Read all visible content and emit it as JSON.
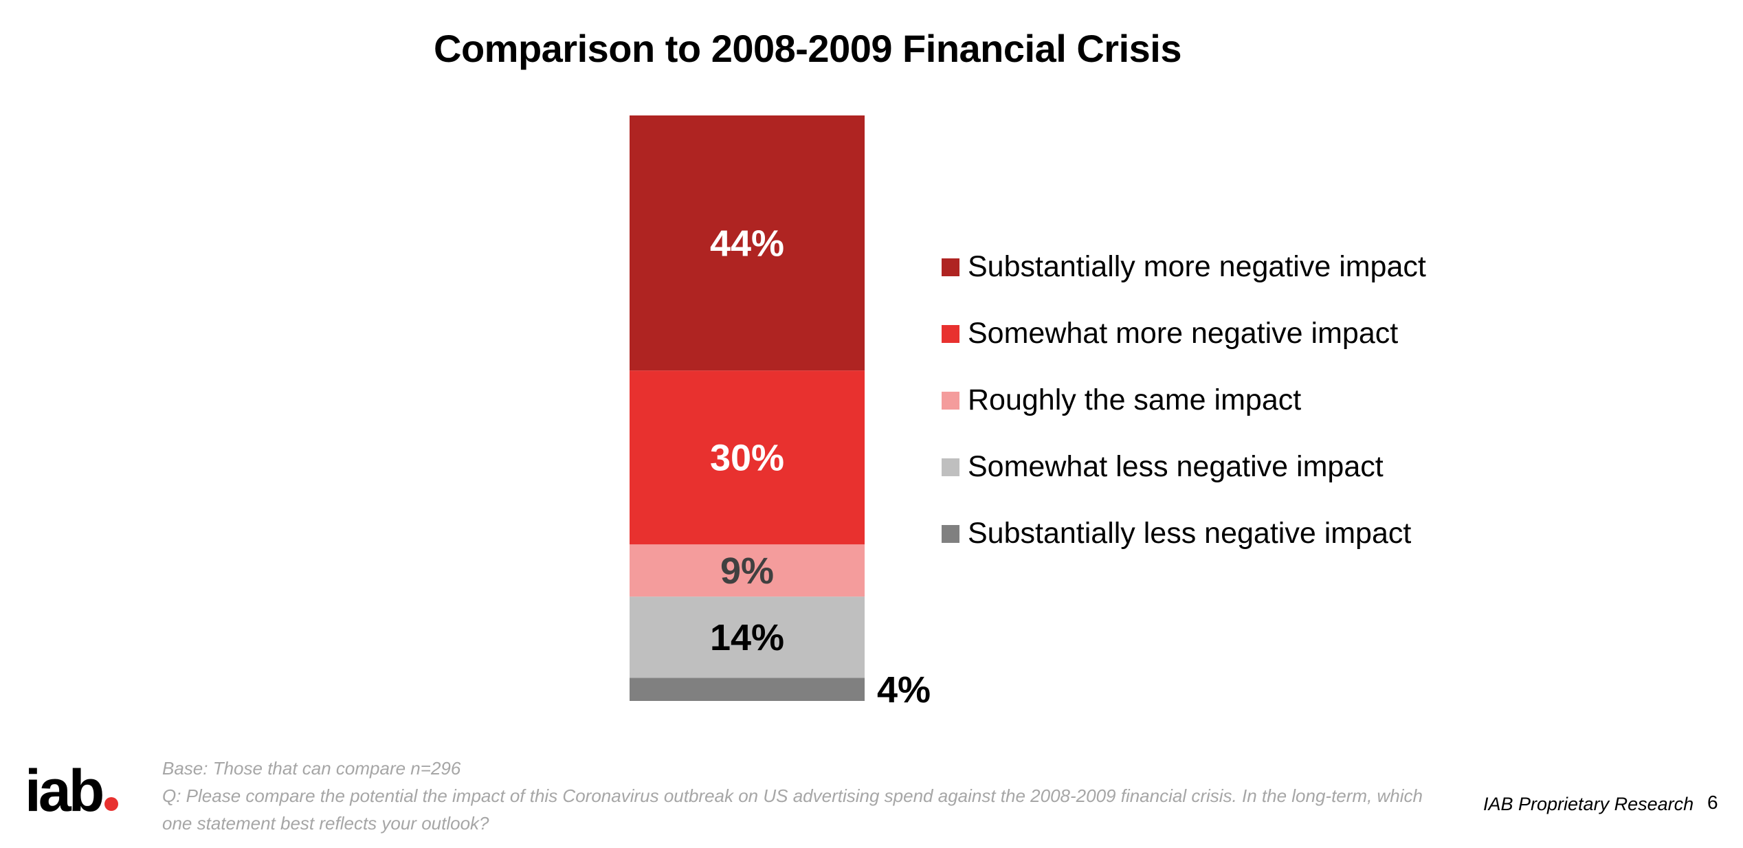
{
  "chart_data": {
    "type": "bar",
    "stacked": true,
    "title": "Comparison to 2008-2009 Financial Crisis",
    "categories": [
      ""
    ],
    "series": [
      {
        "name": "Substantially less negative impact",
        "values": [
          4
        ],
        "label": "4%",
        "color": "#808080",
        "label_color": "#000000"
      },
      {
        "name": "Somewhat less negative impact",
        "values": [
          14
        ],
        "label": "14%",
        "color": "#bfbfbf",
        "label_color": "#000000"
      },
      {
        "name": "Roughly the same impact",
        "values": [
          9
        ],
        "label": "9%",
        "color": "#f49c9c",
        "label_color": "#404040"
      },
      {
        "name": "Somewhat more negative impact",
        "values": [
          30
        ],
        "label": "30%",
        "color": "#e8312f",
        "label_color": "#ffffff"
      },
      {
        "name": "Substantially more negative impact",
        "values": [
          44
        ],
        "label": "44%",
        "color": "#af2422",
        "label_color": "#ffffff"
      }
    ],
    "legend_order": [
      {
        "name": "Substantially more negative impact",
        "color": "#af2422"
      },
      {
        "name": "Somewhat more negative impact",
        "color": "#e8312f"
      },
      {
        "name": "Roughly the same impact",
        "color": "#f49c9c"
      },
      {
        "name": "Somewhat less negative impact",
        "color": "#bfbfbf"
      },
      {
        "name": "Substantially less negative impact",
        "color": "#808080"
      }
    ],
    "legend_position": "right",
    "grid": false,
    "ylim": [
      0,
      101
    ]
  },
  "footnote": {
    "base": "Base: Those that can compare n=296",
    "question": "Q: Please compare the potential the impact of this Coronavirus outbreak on US advertising spend against the 2008-2009 financial crisis. In the long-term, which one statement best reflects your outlook?"
  },
  "footer": {
    "logo_text": "iab",
    "brand": "IAB Proprietary Research",
    "page_number": "6"
  }
}
